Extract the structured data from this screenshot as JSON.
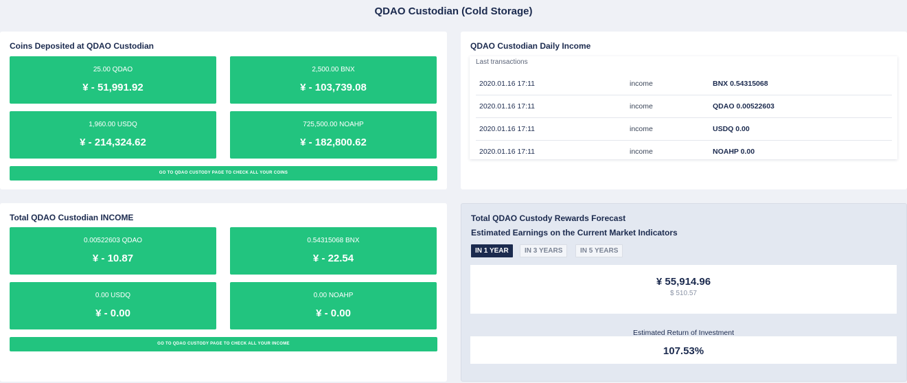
{
  "page_title": "QDAO Custodian (Cold Storage)",
  "deposited": {
    "title": "Coins Deposited at QDAO Custodian",
    "tiles": [
      {
        "amount": "25.00 QDAO",
        "value": "¥ - 51,991.92"
      },
      {
        "amount": "2,500.00 BNX",
        "value": "¥ - 103,739.08"
      },
      {
        "amount": "1,960.00 USDQ",
        "value": "¥ - 214,324.62"
      },
      {
        "amount": "725,500.00 NOAHP",
        "value": "¥ - 182,800.62"
      }
    ],
    "cta": "GO TO QDAO CUSTODY PAGE TO CHECK ALL YOUR COINS"
  },
  "income_total": {
    "title": "Total QDAO Custodian INCOME",
    "tiles": [
      {
        "amount": "0.00522603 QDAO",
        "value": "¥ - 10.87"
      },
      {
        "amount": "0.54315068 BNX",
        "value": "¥ - 22.54"
      },
      {
        "amount": "0.00 USDQ",
        "value": "¥ - 0.00"
      },
      {
        "amount": "0.00 NOAHP",
        "value": "¥ - 0.00"
      }
    ],
    "cta": "GO TO QDAO CUSTODY PAGE TO CHECK ALL YOUR INCOME"
  },
  "daily_income": {
    "title": "QDAO Custodian Daily Income",
    "caption": "Last transactions",
    "rows": [
      {
        "date": "2020.01.16 17:11",
        "type": "income",
        "amount": "BNX 0.54315068"
      },
      {
        "date": "2020.01.16 17:11",
        "type": "income",
        "amount": "QDAO 0.00522603"
      },
      {
        "date": "2020.01.16 17:11",
        "type": "income",
        "amount": "USDQ 0.00"
      },
      {
        "date": "2020.01.16 17:11",
        "type": "income",
        "amount": "NOAHP 0.00"
      }
    ]
  },
  "forecast": {
    "title": "Total QDAO Custody Rewards Forecast",
    "subtitle": "Estimated Earnings on the Current Market Indicators",
    "tabs": [
      "IN 1 YEAR",
      "IN 3 YEARS",
      "IN 5 YEARS"
    ],
    "active_tab": "IN 1 YEAR",
    "earnings_cny": "¥ 55,914.96",
    "earnings_usd": "$ 510.57",
    "roi_label": "Estimated Return of Investment",
    "roi_value": "107.53%"
  },
  "colors": {
    "accent_green": "#22c47f",
    "navy": "#1b2a4e",
    "background": "#eff1f6"
  }
}
